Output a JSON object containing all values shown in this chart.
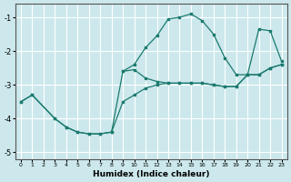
{
  "xlabel": "Humidex (Indice chaleur)",
  "xlim": [
    -0.5,
    23.5
  ],
  "ylim": [
    -5.2,
    -0.6
  ],
  "yticks": [
    -5,
    -4,
    -3,
    -2,
    -1
  ],
  "xticks": [
    0,
    1,
    2,
    3,
    4,
    5,
    6,
    7,
    8,
    9,
    10,
    11,
    12,
    13,
    14,
    15,
    16,
    17,
    18,
    19,
    20,
    21,
    22,
    23
  ],
  "background_color": "#cce8ec",
  "line_color": "#1a7a6e",
  "grid_color": "#ffffff",
  "segments": [
    {
      "x": [
        0,
        1,
        3,
        4,
        5,
        6,
        7,
        8,
        9,
        10,
        11,
        12,
        13,
        14,
        15,
        16,
        17,
        18,
        19,
        20,
        21,
        22,
        23
      ],
      "y": [
        -3.5,
        -3.3,
        -4.0,
        -4.25,
        -4.4,
        -4.45,
        -4.45,
        -4.4,
        -2.6,
        -2.4,
        -1.9,
        -1.55,
        -1.05,
        -1.0,
        -0.9,
        -1.1,
        -1.5,
        -2.2,
        -2.7,
        -2.7,
        -1.35,
        -1.4,
        -2.3
      ]
    },
    {
      "x": [
        0,
        1,
        3,
        4,
        5,
        6,
        7,
        8,
        9,
        10,
        11,
        12,
        13,
        14,
        15,
        16,
        17,
        18,
        19,
        20,
        21,
        22,
        23
      ],
      "y": [
        -3.5,
        -3.3,
        -4.0,
        -4.25,
        -4.4,
        -4.45,
        -4.45,
        -4.4,
        -3.5,
        -3.3,
        -3.1,
        -3.0,
        -2.95,
        -2.95,
        -2.95,
        -2.95,
        -3.0,
        -3.05,
        -3.05,
        -2.7,
        -2.7,
        -2.5,
        -2.4
      ]
    },
    {
      "x": [
        9,
        10,
        11,
        12,
        13,
        14,
        15,
        16,
        17,
        18,
        19,
        20,
        21,
        22,
        23
      ],
      "y": [
        -2.6,
        -2.55,
        -2.8,
        -2.9,
        -2.95,
        -2.95,
        -2.95,
        -2.95,
        -3.0,
        -3.05,
        -3.05,
        -2.7,
        -2.7,
        -2.5,
        -2.4
      ]
    }
  ]
}
